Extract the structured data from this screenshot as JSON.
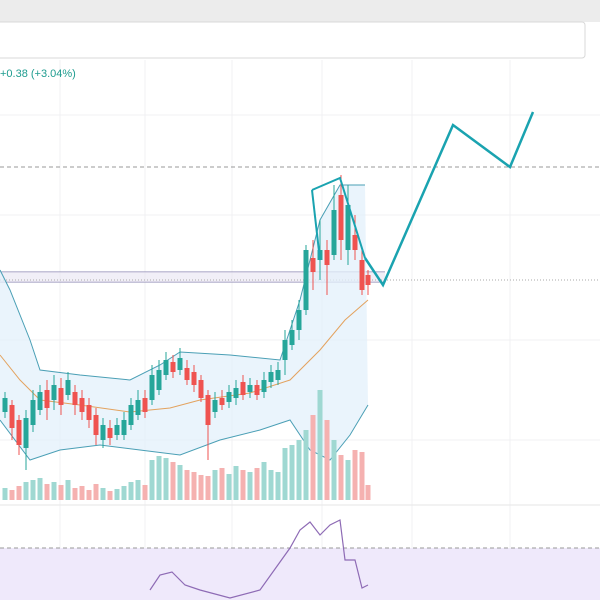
{
  "header": {
    "change": "+0.38 (+3.04%)"
  }
}
